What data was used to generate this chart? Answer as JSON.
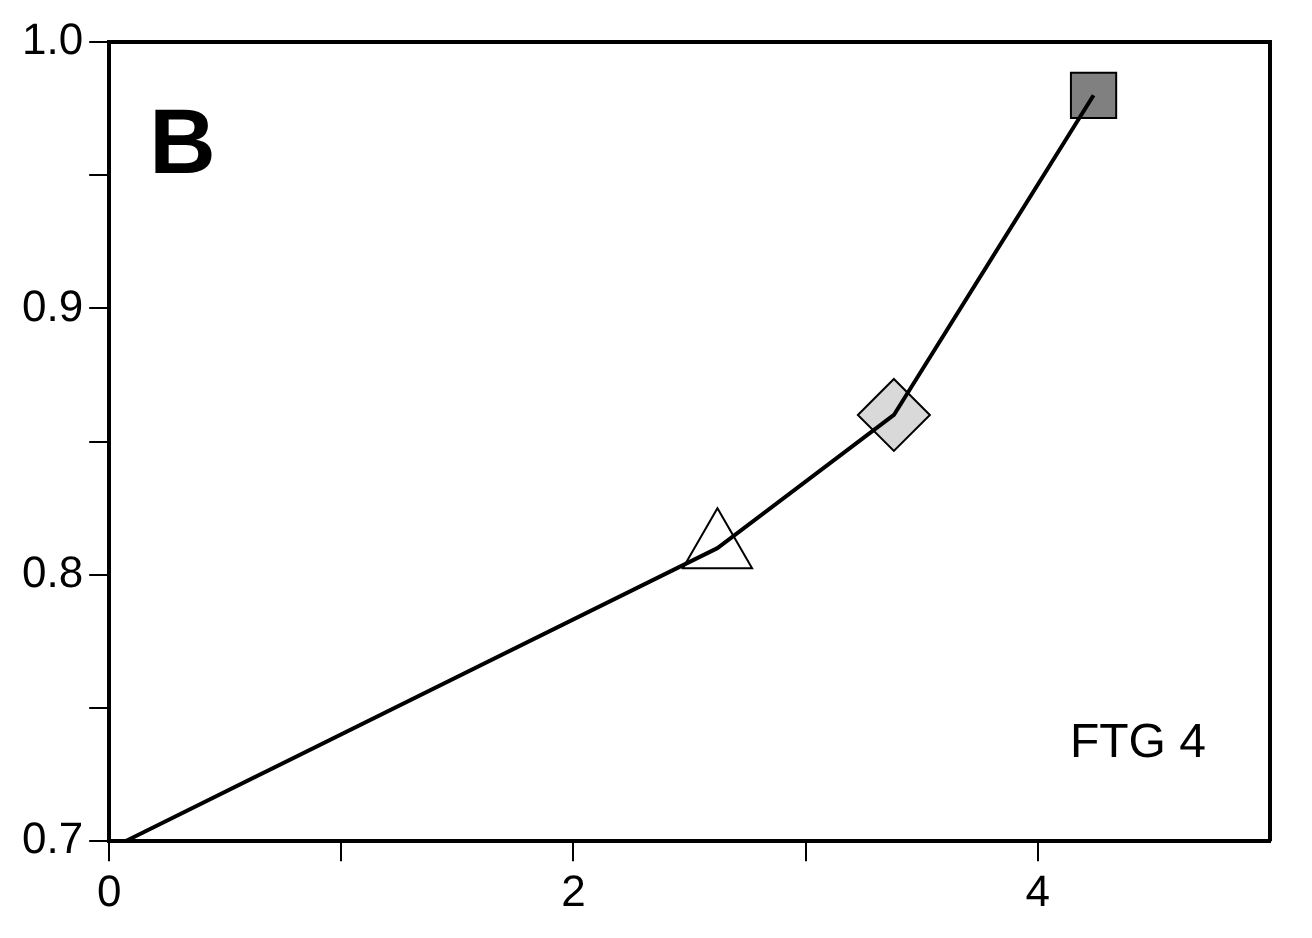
{
  "chart_data": {
    "type": "line",
    "annotations": [
      "B",
      "FTG 4"
    ],
    "xlim": [
      0,
      5
    ],
    "xticks": [
      0,
      {
        "value": 1,
        "label": null
      },
      2,
      {
        "value": 3,
        "label": null
      },
      4
    ],
    "ylim": [
      0.7,
      1.0
    ],
    "yticks": [
      0.7,
      {
        "value": 0.75,
        "label": null
      },
      0.8,
      {
        "value": 0.85,
        "label": null
      },
      0.9,
      {
        "value": 0.95,
        "label": null
      },
      {
        "value": 1.0,
        "label": "1.0"
      }
    ],
    "grid": false,
    "legend": false,
    "series": [
      {
        "type": "line",
        "color": "#000000",
        "marker": "none",
        "x": [
          0.07,
          2.62,
          3.38,
          4.24
        ],
        "values": [
          0.7,
          0.81,
          0.86,
          0.98
        ]
      },
      {
        "type": "scatter",
        "color": "#ffffff",
        "marker": "triangle",
        "x": [
          2.62
        ],
        "values": [
          0.81
        ]
      },
      {
        "type": "scatter",
        "color": "#d9d9d9",
        "marker": "diamond",
        "x": [
          3.38
        ],
        "values": [
          0.86
        ]
      },
      {
        "type": "scatter",
        "color": "#808080",
        "marker": "square",
        "x": [
          4.24
        ],
        "values": [
          0.98
        ]
      }
    ]
  }
}
